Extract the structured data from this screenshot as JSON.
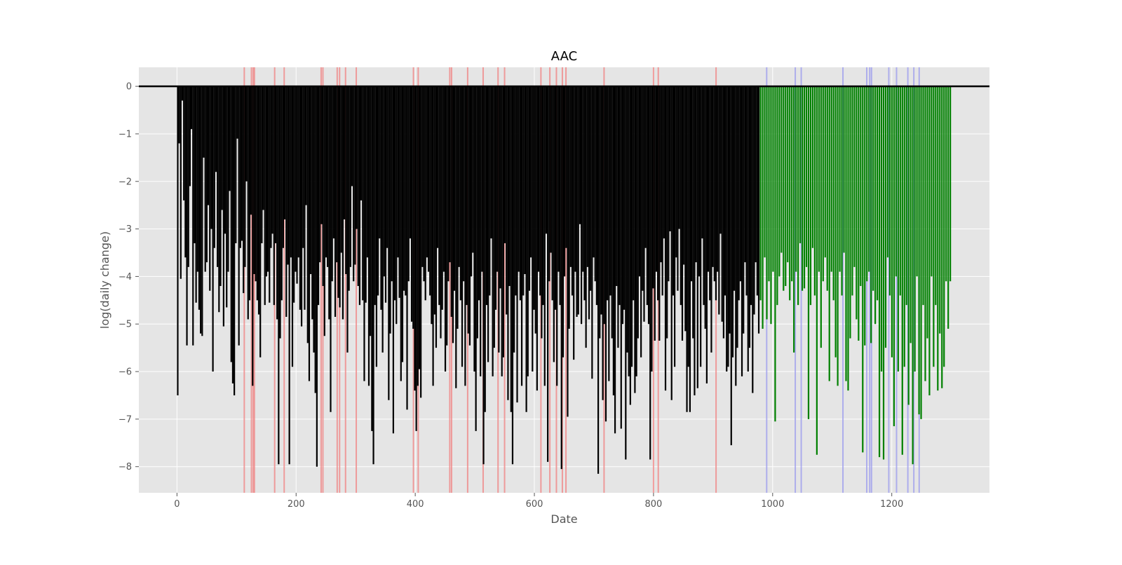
{
  "chart_data": {
    "type": "bar",
    "title": "AAC",
    "xlabel": "Date",
    "ylabel": "log(daily change)",
    "xlim": [
      -64,
      1364
    ],
    "ylim": [
      -8.55,
      0.4
    ],
    "x_ticks": [
      0,
      200,
      400,
      600,
      800,
      1000,
      1200
    ],
    "y_ticks": [
      0,
      -1,
      -2,
      -3,
      -4,
      -5,
      -6,
      -7,
      -8
    ],
    "y_tick_labels": [
      "0",
      "−1",
      "−2",
      "−3",
      "−4",
      "−5",
      "−6",
      "−7",
      "−8"
    ],
    "grid": true,
    "baseline": 0,
    "colors": {
      "background": "#e5e5e5",
      "grid": "#ffffff",
      "train_series": "#000000",
      "test_series": "#008000",
      "train_markers": "#f08080",
      "test_markers": "#9999ee",
      "baseline": "#000000"
    },
    "series": [
      {
        "x_range": [
          0,
          978
        ],
        "color": "#000000",
        "values": [
          -6.5,
          -1.2,
          -4.05,
          -0.3,
          -2.4,
          -3.6,
          -5.45,
          -3.8,
          -2.1,
          -0.9,
          -5.45,
          -3.3,
          -4.55,
          -3.9,
          -4.7,
          -5.2,
          -5.25,
          -1.5,
          -3.9,
          -3.7,
          -2.5,
          -4.3,
          -3.0,
          -6.0,
          -3.4,
          -1.8,
          -3.8,
          -4.75,
          -4.2,
          -2.6,
          -5.05,
          -3.1,
          -4.65,
          -3.9,
          -2.2,
          -5.8,
          -6.25,
          -6.5,
          -3.3,
          -1.1,
          -5.45,
          -3.4,
          -3.25,
          -4.35,
          -3.8,
          -2.0,
          -4.9,
          -4.5,
          -2.7,
          -6.3,
          -3.95,
          -4.1,
          -4.5,
          -4.8,
          -5.7,
          -3.3,
          -2.6,
          -4.6,
          -4.0,
          -3.9,
          -4.55,
          -3.4,
          -3.1,
          -4.6,
          -3.3,
          -4.9,
          -7.95,
          -5.3,
          -4.5,
          -3.4,
          -2.8,
          -4.85,
          -3.75,
          -7.95,
          -3.6,
          -5.9,
          -4.55,
          -3.9,
          -4.15,
          -3.6,
          -4.7,
          -5.05,
          -3.4,
          -4.7,
          -2.5,
          -5.4,
          -6.2,
          -3.95,
          -4.9,
          -5.6,
          -6.45,
          -8.0,
          -4.6,
          -3.7,
          -2.9,
          -4.2,
          -5.25,
          -3.6,
          -3.8,
          -4.9,
          -6.85,
          -4.1,
          -3.2,
          -4.85,
          -3.7,
          -4.45,
          -4.65,
          -3.5,
          -4.9,
          -2.8,
          -3.95,
          -5.6,
          -4.3,
          -3.8,
          -2.1,
          -4.1,
          -3.75,
          -3.0,
          -4.2,
          -4.6,
          -2.4,
          -4.5,
          -6.2,
          -4.55,
          -3.6,
          -6.3,
          -5.25,
          -7.25,
          -7.95,
          -4.6,
          -5.9,
          -4.4,
          -3.2,
          -4.7,
          -5.6,
          -4.0,
          -4.55,
          -3.4,
          -6.6,
          -5.2,
          -4.1,
          -7.3,
          -4.5,
          -5.0,
          -3.6,
          -4.45,
          -6.2,
          -5.8,
          -4.3,
          -4.4,
          -6.8,
          -4.1,
          -3.2,
          -4.95,
          -5.1,
          -6.4,
          -7.25,
          -6.3,
          -5.95,
          -6.55,
          -3.8,
          -4.1,
          -4.5,
          -3.6,
          -3.9,
          -4.4,
          -5.0,
          -6.3,
          -4.8,
          -5.5,
          -3.4,
          -4.6,
          -5.3,
          -4.7,
          -3.9,
          -6.0,
          -5.45,
          -4.1,
          -3.7,
          -4.85,
          -5.4,
          -4.3,
          -6.35,
          -5.1,
          -3.8,
          -4.5,
          -5.9,
          -4.1,
          -6.3,
          -4.6,
          -5.2,
          -5.45,
          -4.0,
          -3.5,
          -6.0,
          -7.25,
          -5.3,
          -4.5,
          -6.1,
          -3.9,
          -7.95,
          -6.85,
          -4.6,
          -5.8,
          -4.4,
          -3.2,
          -6.1,
          -5.5,
          -4.7,
          -3.9,
          -5.6,
          -4.25,
          -6.1,
          -5.7,
          -3.3,
          -4.8,
          -6.6,
          -4.2,
          -6.85,
          -7.95,
          -5.6,
          -4.4,
          -6.65,
          -3.9,
          -4.5,
          -6.3,
          -4.4,
          -3.95,
          -6.85,
          -6.1,
          -4.3,
          -3.6,
          -6.0,
          -4.7,
          -5.2,
          -6.4,
          -3.9,
          -4.4,
          -5.3,
          -4.6,
          -6.3,
          -3.1,
          -7.9,
          -4.1,
          -3.5,
          -4.5,
          -5.8,
          -4.7,
          -6.3,
          -3.9,
          -4.6,
          -8.05,
          -5.7,
          -4.0,
          -3.4,
          -6.95,
          -5.1,
          -3.8,
          -4.4,
          -5.75,
          -3.9,
          -4.85,
          -4.8,
          -2.9,
          -5.0,
          -3.9,
          -4.5,
          -5.5,
          -3.8,
          -4.9,
          -4.3,
          -6.15,
          -3.6,
          -4.1,
          -4.6,
          -8.15,
          -5.3,
          -4.8,
          -6.6,
          -5.0,
          -7.05,
          -4.5,
          -6.2,
          -4.4,
          -5.3,
          -6.5,
          -7.3,
          -4.2,
          -5.5,
          -4.6,
          -7.2,
          -5.0,
          -4.7,
          -7.85,
          -5.6,
          -6.1,
          -6.7,
          -5.9,
          -4.5,
          -6.45,
          -6.1,
          -5.3,
          -4.0,
          -5.7,
          -4.3,
          -4.95,
          -3.4,
          -4.6,
          -5.0,
          -7.85,
          -6.0,
          -4.25,
          -5.35,
          -3.9,
          -4.5,
          -5.35,
          -3.7,
          -4.4,
          -3.2,
          -6.4,
          -5.3,
          -4.1,
          -3.05,
          -6.6,
          -4.4,
          -5.9,
          -3.6,
          -4.3,
          -3.0,
          -4.6,
          -5.35,
          -3.75,
          -5.15,
          -6.85,
          -5.9,
          -6.85,
          -4.1,
          -5.3,
          -6.5,
          -3.7,
          -6.35,
          -4.0,
          -5.9,
          -3.2,
          -4.6,
          -5.1,
          -6.25,
          -3.9,
          -4.5,
          -5.6,
          -3.8,
          -4.1,
          -4.5,
          -3.9,
          -4.8,
          -3.1,
          -4.95,
          -5.3,
          -4.4,
          -6.0,
          -5.9,
          -5.2,
          -7.55,
          -5.7,
          -4.3,
          -6.3,
          -5.5,
          -4.5,
          -4.1,
          -6.1,
          -5.2,
          -3.7,
          -4.4,
          -6.0,
          -5.5,
          -4.6,
          -6.45,
          -4.8,
          -3.7,
          -4.4,
          -5.2
        ]
      },
      {
        "x_range": [
          978,
          1300
        ],
        "color": "#008000",
        "values": [
          -4.5,
          -5.1,
          -3.6,
          -4.9,
          -4.1,
          -5.0,
          -3.9,
          -7.05,
          -4.6,
          -4.0,
          -3.5,
          -4.3,
          -4.2,
          -3.7,
          -4.5,
          -4.1,
          -5.6,
          -3.9,
          -4.6,
          -3.3,
          -4.3,
          -4.25,
          -3.8,
          -7.0,
          -4.6,
          -3.4,
          -4.4,
          -7.75,
          -3.9,
          -5.5,
          -4.1,
          -3.6,
          -4.3,
          -6.2,
          -3.9,
          -4.5,
          -5.7,
          -6.3,
          -3.9,
          -4.4,
          -3.5,
          -6.2,
          -6.4,
          -5.3,
          -4.4,
          -3.8,
          -4.9,
          -5.35,
          -4.2,
          -7.7,
          -5.45,
          -4.1,
          -3.9,
          -5.4,
          -4.3,
          -5.0,
          -4.5,
          -7.8,
          -6.0,
          -7.85,
          -5.5,
          -3.6,
          -4.4,
          -5.7,
          -7.15,
          -4.0,
          -6.0,
          -4.4,
          -7.75,
          -5.9,
          -4.6,
          -6.7,
          -5.4,
          -7.95,
          -6.0,
          -4.0,
          -6.9,
          -7.0,
          -4.6,
          -6.2,
          -5.3,
          -6.5,
          -4.0,
          -5.9,
          -4.6,
          -6.4,
          -5.2,
          -6.35,
          -5.9,
          -4.1,
          -5.1,
          -4.1
        ]
      }
    ],
    "train_event_markers": [
      113,
      125,
      128,
      130,
      164,
      180,
      242,
      245,
      269,
      273,
      283,
      301,
      397,
      405,
      458,
      461,
      488,
      514,
      539,
      550,
      611,
      626,
      637,
      647,
      653,
      717,
      800,
      808,
      905
    ],
    "test_event_markers": [
      990,
      1038,
      1048,
      1118,
      1158,
      1163,
      1166,
      1195,
      1208,
      1227,
      1237,
      1246
    ]
  }
}
